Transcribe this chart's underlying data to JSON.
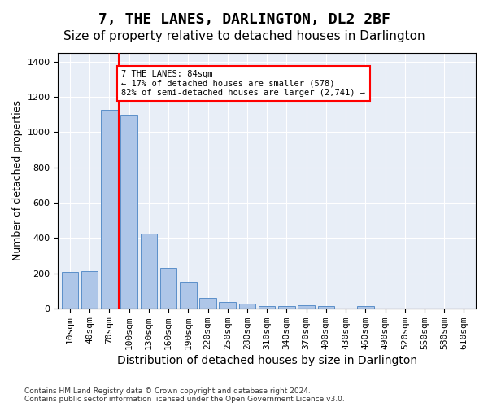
{
  "title": "7, THE LANES, DARLINGTON, DL2 2BF",
  "subtitle": "Size of property relative to detached houses in Darlington",
  "xlabel": "Distribution of detached houses by size in Darlington",
  "ylabel": "Number of detached properties",
  "categories": [
    "10sqm",
    "40sqm",
    "70sqm",
    "100sqm",
    "130sqm",
    "160sqm",
    "190sqm",
    "220sqm",
    "250sqm",
    "280sqm",
    "310sqm",
    "340sqm",
    "370sqm",
    "400sqm",
    "430sqm",
    "460sqm",
    "490sqm",
    "520sqm",
    "550sqm",
    "580sqm",
    "610sqm"
  ],
  "values": [
    207,
    210,
    1125,
    1100,
    425,
    230,
    148,
    58,
    38,
    26,
    13,
    15,
    17,
    15,
    0,
    12,
    0,
    0,
    0,
    0,
    0
  ],
  "bar_color": "#aec6e8",
  "bar_edge_color": "#5b8fc9",
  "vline_color": "red",
  "vline_pos": 2.47,
  "annotation_text": "7 THE LANES: 84sqm\n← 17% of detached houses are smaller (578)\n82% of semi-detached houses are larger (2,741) →",
  "annotation_box_color": "white",
  "annotation_box_edge_color": "red",
  "ylim": [
    0,
    1450
  ],
  "yticks": [
    0,
    200,
    400,
    600,
    800,
    1000,
    1200,
    1400
  ],
  "background_color": "#e8eef7",
  "footer_line1": "Contains HM Land Registry data © Crown copyright and database right 2024.",
  "footer_line2": "Contains public sector information licensed under the Open Government Licence v3.0.",
  "title_fontsize": 13,
  "subtitle_fontsize": 11,
  "xlabel_fontsize": 10,
  "ylabel_fontsize": 9,
  "tick_fontsize": 8
}
